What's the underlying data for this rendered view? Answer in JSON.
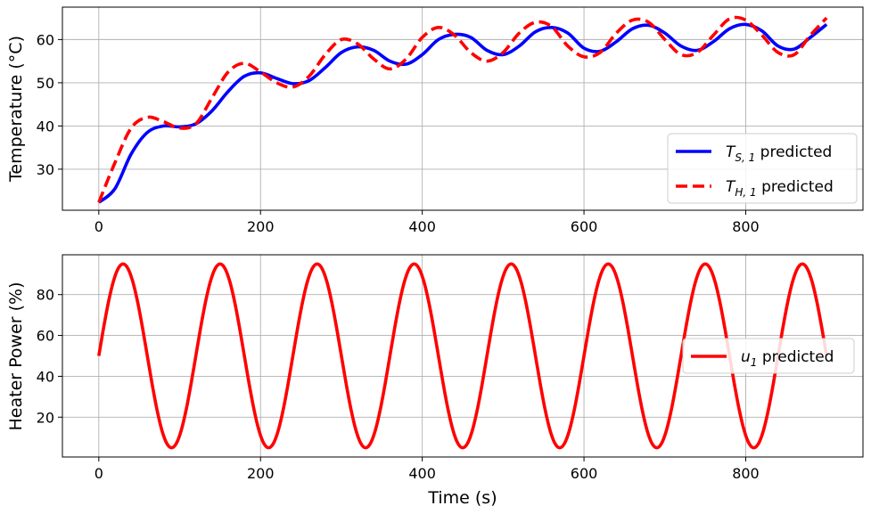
{
  "chart_data": [
    {
      "type": "line",
      "title": "",
      "xlabel": "",
      "ylabel": "Temperature (°C)",
      "xlim": [
        -45,
        945
      ],
      "ylim": [
        20.5,
        67.5
      ],
      "xticks": [
        0,
        200,
        400,
        600,
        800
      ],
      "yticks": [
        30,
        40,
        50,
        60
      ],
      "grid": true,
      "legend_position": "lower-right",
      "series": [
        {
          "name": "T_S,1 predicted",
          "name_main": "T",
          "name_sub": "S, 1",
          "name_suffix": " predicted",
          "color": "#0000ff",
          "style": "solid",
          "x": [
            0,
            20,
            40,
            60,
            80,
            100,
            120,
            140,
            160,
            180,
            200,
            220,
            240,
            260,
            280,
            300,
            320,
            340,
            360,
            380,
            400,
            420,
            440,
            460,
            480,
            500,
            520,
            540,
            560,
            580,
            600,
            620,
            640,
            660,
            680,
            700,
            720,
            740,
            760,
            780,
            800,
            820,
            840,
            860,
            880,
            900
          ],
          "y": [
            22.3,
            25.5,
            33.5,
            38.5,
            40.0,
            39.8,
            40.5,
            43.5,
            48.0,
            51.5,
            52.3,
            51.0,
            49.8,
            50.5,
            53.5,
            57.0,
            58.3,
            57.5,
            55.0,
            54.3,
            56.5,
            60.0,
            61.2,
            60.5,
            57.5,
            56.5,
            58.5,
            61.8,
            62.8,
            61.5,
            58.0,
            57.3,
            59.5,
            62.5,
            63.3,
            61.5,
            58.5,
            57.5,
            59.5,
            62.5,
            63.5,
            62.0,
            58.5,
            57.8,
            60.5,
            63.5
          ]
        },
        {
          "name": "T_H,1 predicted",
          "name_main": "T",
          "name_sub": "H, 1",
          "name_suffix": " predicted",
          "color": "#ff0000",
          "style": "dashed",
          "x": [
            0,
            20,
            40,
            60,
            80,
            100,
            120,
            140,
            160,
            180,
            200,
            220,
            240,
            260,
            280,
            300,
            320,
            340,
            360,
            380,
            400,
            420,
            440,
            460,
            480,
            500,
            520,
            540,
            560,
            580,
            600,
            620,
            640,
            660,
            680,
            700,
            720,
            740,
            760,
            780,
            800,
            820,
            840,
            860,
            880,
            900
          ],
          "y": [
            22.3,
            31.5,
            39.5,
            42.0,
            41.0,
            39.5,
            40.5,
            46.5,
            52.5,
            54.5,
            52.5,
            50.0,
            49.0,
            51.5,
            56.5,
            60.0,
            59.0,
            55.5,
            53.2,
            55.5,
            60.5,
            62.8,
            61.0,
            57.0,
            55.0,
            57.0,
            61.5,
            64.0,
            63.0,
            58.5,
            56.0,
            57.0,
            61.5,
            64.5,
            64.0,
            60.0,
            56.5,
            57.0,
            61.0,
            64.8,
            64.5,
            61.0,
            57.0,
            56.5,
            61.0,
            65.0
          ]
        }
      ]
    },
    {
      "type": "line",
      "title": "",
      "xlabel": "Time (s)",
      "ylabel": "Heater Power (%)",
      "xlim": [
        -45,
        945
      ],
      "ylim": [
        0.5,
        99.5
      ],
      "xticks": [
        0,
        200,
        400,
        600,
        800
      ],
      "yticks": [
        20,
        40,
        60,
        80
      ],
      "grid": true,
      "legend_position": "center-right",
      "series": [
        {
          "name": "u_1 predicted",
          "name_main": "u",
          "name_sub": "1",
          "name_suffix": " predicted",
          "color": "#ff0000",
          "style": "solid",
          "function": "50 + 45*sin(2*pi*t/120)",
          "x_start": 0,
          "x_end": 900,
          "x_step": 6,
          "amplitude": 45,
          "offset": 50,
          "period": 120
        }
      ]
    }
  ]
}
